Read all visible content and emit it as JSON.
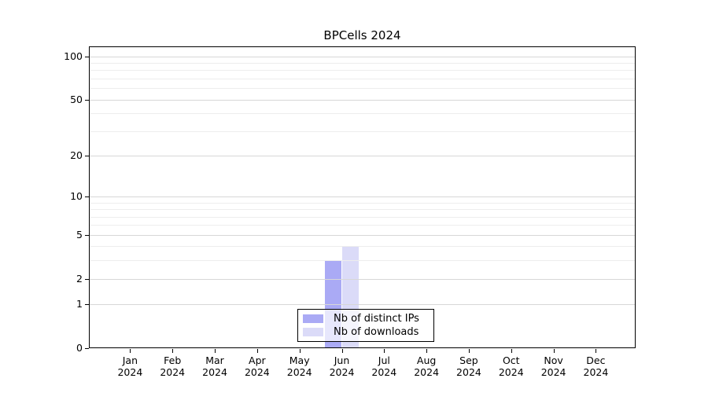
{
  "window": {
    "background_color": "#ffffff"
  },
  "chart_data": {
    "type": "bar",
    "title": "BPCells 2024",
    "xlabel": "",
    "ylabel": "",
    "x_year_label": "2024",
    "categories": [
      "Jan",
      "Feb",
      "Mar",
      "Apr",
      "May",
      "Jun",
      "Jul",
      "Aug",
      "Sep",
      "Oct",
      "Nov",
      "Dec"
    ],
    "series": [
      {
        "name": "Nb of distinct IPs",
        "color": "#aaaaf5",
        "values": [
          0,
          0,
          0,
          0,
          0,
          3,
          0,
          0,
          0,
          0,
          0,
          0
        ]
      },
      {
        "name": "Nb of downloads",
        "color": "#dbdbf8",
        "values": [
          0,
          0,
          0,
          0,
          0,
          4,
          0,
          0,
          0,
          0,
          0,
          0
        ]
      }
    ],
    "yscale": "log1p",
    "ylim": [
      0,
      117
    ],
    "yticks": [
      0,
      1,
      2,
      5,
      10,
      20,
      50,
      100
    ],
    "grid": {
      "enabled": true,
      "major_values": [
        1,
        2,
        5,
        10,
        20,
        50,
        100
      ],
      "minor_values": [
        3,
        4,
        6,
        7,
        8,
        9,
        30,
        40,
        60,
        70,
        80,
        90
      ],
      "major_color": "#d7d7d7",
      "minor_color": "#ededed"
    },
    "axis_color": "#000000",
    "legend_position": "inside-bottom-center"
  }
}
